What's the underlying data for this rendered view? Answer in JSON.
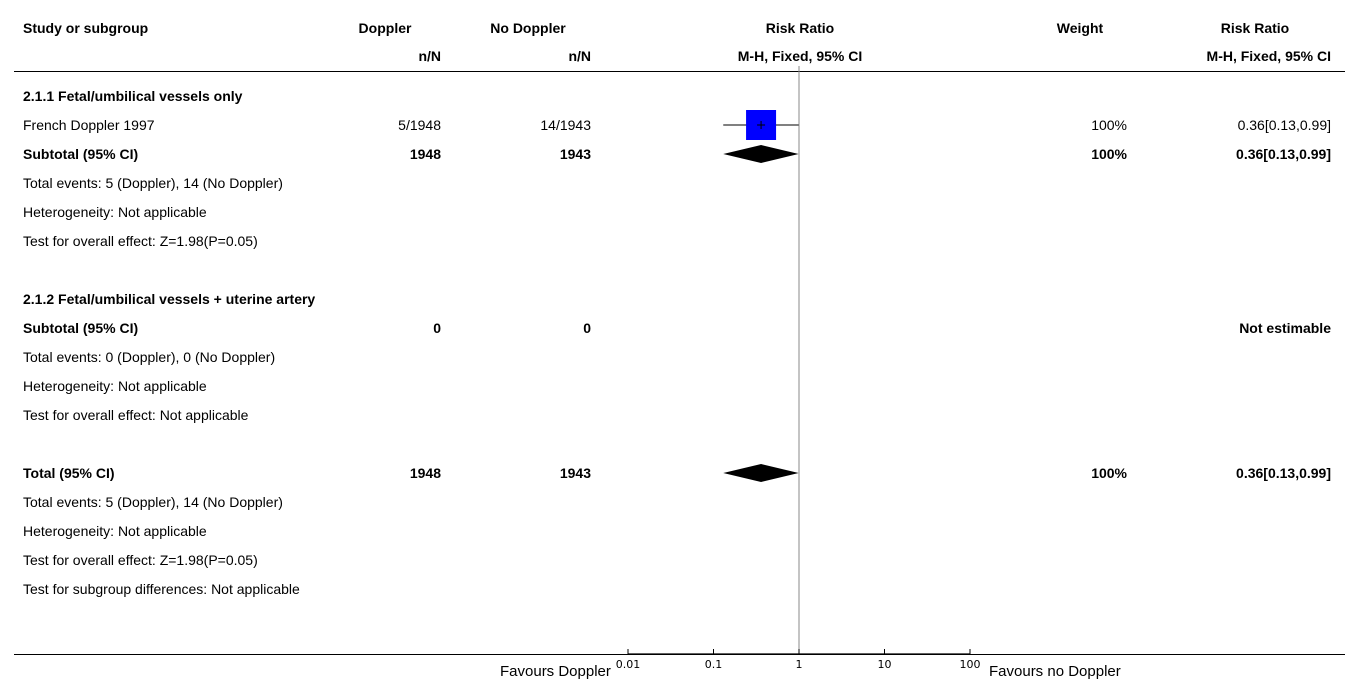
{
  "header": {
    "study_col": "Study or subgroup",
    "exp_col": "Doppler",
    "exp_sub": "n/N",
    "ctl_col": "No Doppler",
    "ctl_sub": "n/N",
    "plot_col": "Risk Ratio",
    "plot_sub": "M-H, Fixed, 95% CI",
    "weight_col": "Weight",
    "rr_col": "Risk Ratio",
    "rr_sub": "M-H, Fixed, 95% CI"
  },
  "rows": [
    {
      "kind": "heading",
      "label": "2.1.1 Fetal/umbilical vessels only"
    },
    {
      "kind": "study",
      "label": "French Doppler 1997",
      "exp": "5/1948",
      "ctl": "14/1943",
      "weight": "100%",
      "ci_text": "0.36[0.13,0.99]"
    },
    {
      "kind": "subtotal",
      "label": "Subtotal (95% CI)",
      "exp": "1948",
      "ctl": "1943",
      "weight": "100%",
      "ci_text": "0.36[0.13,0.99]"
    },
    {
      "kind": "note",
      "label": "Total events: 5 (Doppler), 14 (No Doppler)"
    },
    {
      "kind": "note",
      "label": "Heterogeneity: Not applicable"
    },
    {
      "kind": "note",
      "label": "Test for overall effect: Z=1.98(P=0.05)"
    },
    {
      "kind": "blank",
      "label": ""
    },
    {
      "kind": "heading",
      "label": "2.1.2 Fetal/umbilical vessels + uterine artery"
    },
    {
      "kind": "subtotal",
      "label": "Subtotal (95% CI)",
      "exp": "0",
      "ctl": "0",
      "weight": "",
      "ci_text": "Not estimable"
    },
    {
      "kind": "note",
      "label": "Total events: 0 (Doppler), 0 (No Doppler)"
    },
    {
      "kind": "note",
      "label": "Heterogeneity: Not applicable"
    },
    {
      "kind": "note",
      "label": "Test for overall effect: Not applicable"
    },
    {
      "kind": "blank",
      "label": ""
    },
    {
      "kind": "subtotal",
      "label": "Total (95% CI)",
      "exp": "1948",
      "ctl": "1943",
      "weight": "100%",
      "ci_text": "0.36[0.13,0.99]"
    },
    {
      "kind": "note",
      "label": "Total events: 5 (Doppler), 14 (No Doppler)"
    },
    {
      "kind": "note",
      "label": "Heterogeneity: Not applicable"
    },
    {
      "kind": "note",
      "label": "Test for overall effect: Z=1.98(P=0.05)"
    },
    {
      "kind": "note",
      "label": "Test for subgroup differences: Not applicable"
    }
  ],
  "chart_data": {
    "type": "forest",
    "scale": "log",
    "xlim": [
      0.01,
      100
    ],
    "null_value": 1,
    "ticks": [
      "0.01",
      "0.1",
      "1",
      "10",
      "100"
    ],
    "tick_values": [
      0.01,
      0.1,
      1,
      10,
      100
    ],
    "left_label": "Favours Doppler",
    "right_label": "Favours no Doppler",
    "study_color": "#0000ff",
    "studies": [
      {
        "name": "French Doppler 1997",
        "rr": 0.36,
        "lo": 0.13,
        "hi": 0.99,
        "weight": 100
      }
    ],
    "diamonds": [
      {
        "name": "Subtotal (95% CI)",
        "rr": 0.36,
        "lo": 0.13,
        "hi": 0.99
      },
      {
        "name": "Total (95% CI)",
        "rr": 0.36,
        "lo": 0.13,
        "hi": 0.99
      }
    ]
  }
}
